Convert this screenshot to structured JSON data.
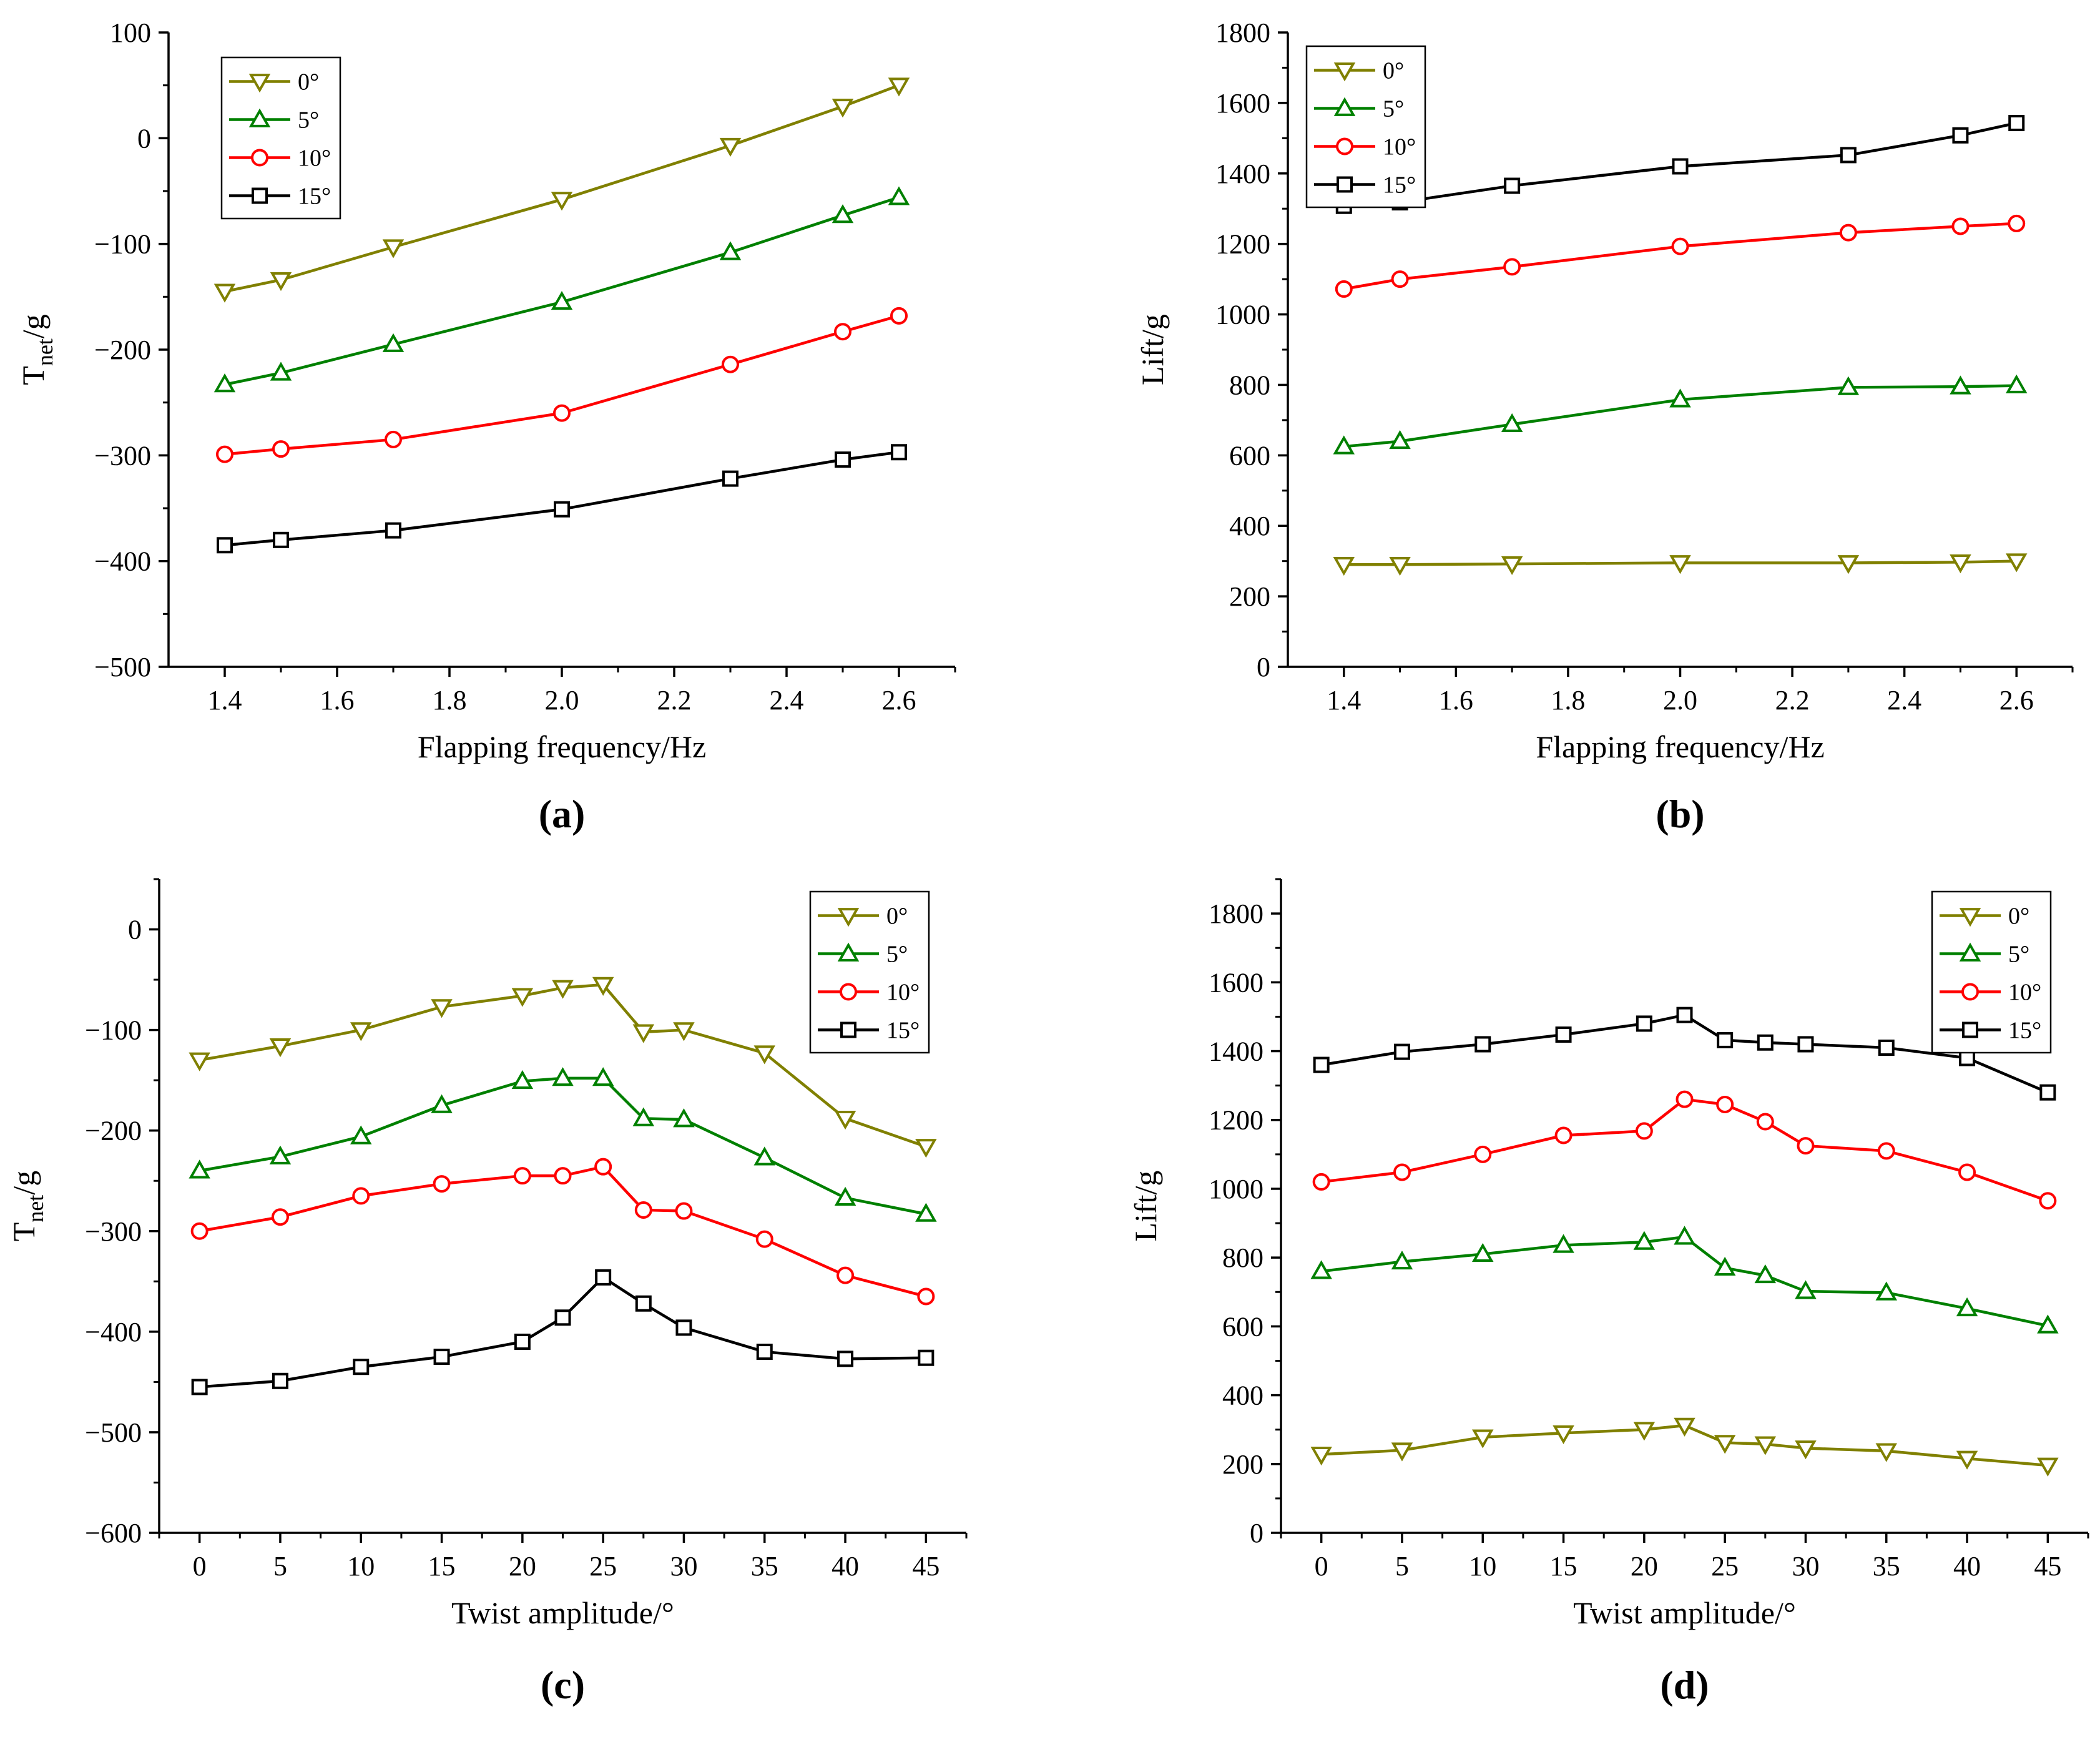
{
  "chart_data": [
    {
      "panel_label": "(a)",
      "type": "line",
      "xlabel": "Flapping frequency/Hz",
      "ylabel_main": "T",
      "ylabel_sub": "net",
      "ylabel_tail": "/g",
      "xlim": [
        1.3,
        2.7
      ],
      "ylim": [
        -500,
        100
      ],
      "xticks": [
        1.4,
        1.6,
        1.8,
        2.0,
        2.2,
        2.4,
        2.6
      ],
      "xtick_labels": [
        "1.4",
        "1.6",
        "1.8",
        "2.0",
        "2.2",
        "2.4",
        "2.6"
      ],
      "yticks": [
        -500,
        -400,
        -300,
        -200,
        -100,
        0,
        100
      ],
      "ytick_labels": [
        "−500",
        "−400",
        "−300",
        "−200",
        "−100",
        "0",
        "100"
      ],
      "legend_position": "top-left",
      "x": [
        1.4,
        1.5,
        1.7,
        2.0,
        2.3,
        2.5,
        2.6
      ],
      "series": [
        {
          "name": "0°",
          "color": "#808000",
          "marker": "triangle-down",
          "values": [
            -145,
            -134,
            -103,
            -58,
            -7,
            30,
            50
          ]
        },
        {
          "name": "5°",
          "color": "#008000",
          "marker": "triangle-up",
          "values": [
            -233,
            -222,
            -195,
            -155,
            -108,
            -73,
            -56
          ]
        },
        {
          "name": "10°",
          "color": "#ff0000",
          "marker": "circle",
          "values": [
            -299,
            -294,
            -285,
            -260,
            -214,
            -183,
            -168
          ]
        },
        {
          "name": "15°",
          "color": "#000000",
          "marker": "square",
          "values": [
            -385,
            -380,
            -371,
            -351,
            -322,
            -304,
            -297
          ]
        }
      ]
    },
    {
      "panel_label": "(b)",
      "type": "line",
      "xlabel": "Flapping frequency/Hz",
      "ylabel_main": "Lift/g",
      "ylabel_sub": "",
      "ylabel_tail": "",
      "xlim": [
        1.3,
        2.7
      ],
      "ylim": [
        0,
        1800
      ],
      "xticks": [
        1.4,
        1.6,
        1.8,
        2.0,
        2.2,
        2.4,
        2.6
      ],
      "xtick_labels": [
        "1.4",
        "1.6",
        "1.8",
        "2.0",
        "2.2",
        "2.4",
        "2.6"
      ],
      "yticks": [
        0,
        200,
        400,
        600,
        800,
        1000,
        1200,
        1400,
        1600,
        1800
      ],
      "ytick_labels": [
        "0",
        "200",
        "400",
        "600",
        "800",
        "1000",
        "1200",
        "1400",
        "1600",
        "1800"
      ],
      "legend_position": "top-left",
      "x": [
        1.4,
        1.5,
        1.7,
        2.0,
        2.3,
        2.5,
        2.6
      ],
      "series": [
        {
          "name": "0°",
          "color": "#808000",
          "marker": "triangle-down",
          "values": [
            290,
            290,
            292,
            295,
            295,
            297,
            300
          ]
        },
        {
          "name": "5°",
          "color": "#008000",
          "marker": "triangle-up",
          "values": [
            625,
            640,
            688,
            758,
            793,
            795,
            798
          ]
        },
        {
          "name": "10°",
          "color": "#ff0000",
          "marker": "circle",
          "values": [
            1072,
            1100,
            1135,
            1193,
            1232,
            1250,
            1258
          ]
        },
        {
          "name": "15°",
          "color": "#000000",
          "marker": "square",
          "values": [
            1308,
            1318,
            1365,
            1420,
            1452,
            1508,
            1543
          ]
        }
      ]
    },
    {
      "panel_label": "(c)",
      "type": "line",
      "xlabel": "Twist amplitude/°",
      "ylabel_main": "T",
      "ylabel_sub": "net",
      "ylabel_tail": "/g",
      "xlim": [
        -2.5,
        47.5
      ],
      "ylim": [
        -600,
        50
      ],
      "xticks": [
        0,
        5,
        10,
        15,
        20,
        25,
        30,
        35,
        40,
        45
      ],
      "xtick_labels": [
        "0",
        "5",
        "10",
        "15",
        "20",
        "25",
        "30",
        "35",
        "40",
        "45"
      ],
      "yticks": [
        -600,
        -500,
        -400,
        -300,
        -200,
        -100,
        0
      ],
      "ytick_labels": [
        "−600",
        "−500",
        "−400",
        "−300",
        "−200",
        "−100",
        "0"
      ],
      "legend_position": "top-right",
      "x": [
        0,
        5,
        10,
        15,
        20,
        22.5,
        25,
        27.5,
        30,
        35,
        40,
        45
      ],
      "series": [
        {
          "name": "0°",
          "color": "#808000",
          "marker": "triangle-down",
          "values": [
            -130,
            -116,
            -100,
            -77,
            -66,
            -58,
            -55,
            -102,
            -100,
            -123,
            -188,
            -216
          ]
        },
        {
          "name": "5°",
          "color": "#008000",
          "marker": "triangle-up",
          "values": [
            -240,
            -226,
            -206,
            -175,
            -151,
            -148,
            -148,
            -188,
            -189,
            -227,
            -267,
            -283
          ]
        },
        {
          "name": "10°",
          "color": "#ff0000",
          "marker": "circle",
          "values": [
            -300,
            -286,
            -265,
            -253,
            -245,
            -245,
            -236,
            -279,
            -280,
            -308,
            -344,
            -365
          ]
        },
        {
          "name": "15°",
          "color": "#000000",
          "marker": "square",
          "values": [
            -455,
            -449,
            -435,
            -425,
            -410,
            -386,
            -346,
            -372,
            -396,
            -420,
            -427,
            -426
          ]
        }
      ]
    },
    {
      "panel_label": "(d)",
      "type": "line",
      "xlabel": "Twist amplitude/°",
      "ylabel_main": "Lift/g",
      "ylabel_sub": "",
      "ylabel_tail": "",
      "xlim": [
        -2.5,
        47.5
      ],
      "ylim": [
        0,
        1900
      ],
      "xticks": [
        0,
        5,
        10,
        15,
        20,
        25,
        30,
        35,
        40,
        45
      ],
      "xtick_labels": [
        "0",
        "5",
        "10",
        "15",
        "20",
        "25",
        "30",
        "35",
        "40",
        "45"
      ],
      "yticks": [
        0,
        200,
        400,
        600,
        800,
        1000,
        1200,
        1400,
        1600,
        1800
      ],
      "ytick_labels": [
        "0",
        "200",
        "400",
        "600",
        "800",
        "1000",
        "1200",
        "1400",
        "1600",
        "1800"
      ],
      "legend_position": "top-right",
      "x": [
        0,
        5,
        10,
        15,
        20,
        22.5,
        25,
        27.5,
        30,
        35,
        40,
        45
      ],
      "series": [
        {
          "name": "0°",
          "color": "#808000",
          "marker": "triangle-down",
          "values": [
            228,
            240,
            278,
            290,
            300,
            312,
            262,
            258,
            246,
            238,
            216,
            196
          ]
        },
        {
          "name": "5°",
          "color": "#008000",
          "marker": "triangle-up",
          "values": [
            760,
            788,
            810,
            836,
            845,
            860,
            770,
            748,
            702,
            698,
            652,
            602
          ]
        },
        {
          "name": "10°",
          "color": "#ff0000",
          "marker": "circle",
          "values": [
            1020,
            1048,
            1100,
            1155,
            1168,
            1260,
            1245,
            1195,
            1125,
            1110,
            1048,
            965
          ]
        },
        {
          "name": "15°",
          "color": "#000000",
          "marker": "square",
          "values": [
            1360,
            1398,
            1420,
            1448,
            1480,
            1505,
            1432,
            1425,
            1420,
            1410,
            1380,
            1280
          ]
        }
      ]
    }
  ]
}
